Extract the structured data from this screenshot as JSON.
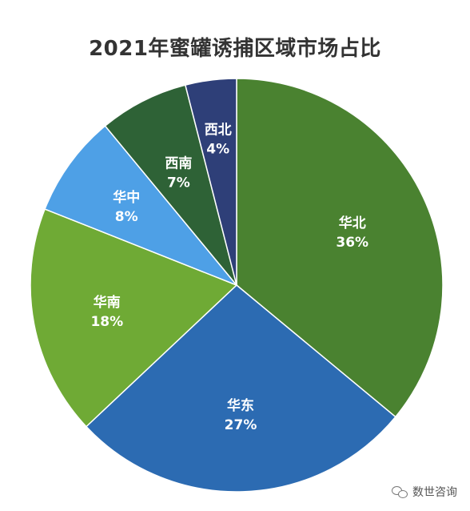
{
  "chart_data": {
    "type": "pie",
    "title": "2021年蜜罐诱捕区域市场占比",
    "slices": [
      {
        "label": "华北",
        "value": 36,
        "display": "36%",
        "color": "#4a8230"
      },
      {
        "label": "华东",
        "value": 27,
        "display": "27%",
        "color": "#2c6bb2"
      },
      {
        "label": "华南",
        "value": 18,
        "display": "18%",
        "color": "#6faa35"
      },
      {
        "label": "华中",
        "value": 8,
        "display": "8%",
        "color": "#4ea0e6"
      },
      {
        "label": "西南",
        "value": 7,
        "display": "7%",
        "color": "#2e6236"
      },
      {
        "label": "西北",
        "value": 4,
        "display": "4%",
        "color": "#2e3f78"
      }
    ],
    "start_angle": "12 o'clock",
    "direction": "clockwise",
    "legend": "none"
  },
  "watermark": {
    "icon": "wechat-icon",
    "text": "数世咨询"
  }
}
